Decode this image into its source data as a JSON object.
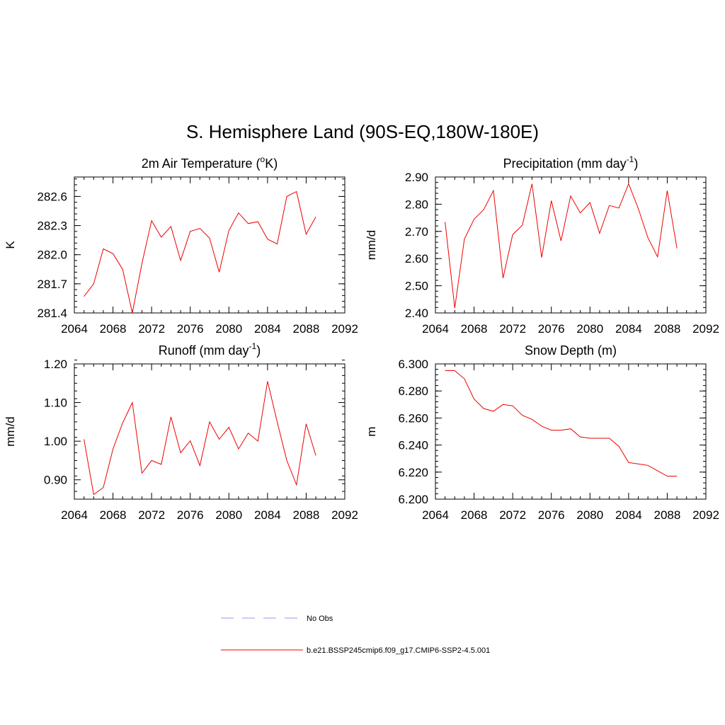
{
  "title": "S. Hemisphere Land (90S-EQ,180W-180E)",
  "colors": {
    "model": "#ee0000",
    "obs": "#9999ee"
  },
  "legend": [
    {
      "label": "No Obs",
      "style": "dashed",
      "color": "#9999ee"
    },
    {
      "label": "b.e21.BSSP245cmip6.f09_g17.CMIP6-SSP2-4.5.001",
      "style": "solid",
      "color": "#ee0000"
    }
  ],
  "chart_data": [
    {
      "type": "line",
      "title_main": "2m Air Temperature (",
      "title_sup": "o",
      "title_after": "K)",
      "ylabel": "K",
      "xlim": [
        2064,
        2092
      ],
      "ylim": [
        281.4,
        282.8
      ],
      "xticks": [
        2064,
        2068,
        2072,
        2076,
        2080,
        2084,
        2088,
        2092
      ],
      "yticks": [
        281.4,
        281.7,
        282.0,
        282.3,
        282.6
      ],
      "ytick_labels": [
        "281.4",
        "281.7",
        "282.0",
        "282.3",
        "282.6"
      ],
      "yminor": 0.06,
      "x": [
        2065,
        2066,
        2067,
        2068,
        2069,
        2070,
        2071,
        2072,
        2073,
        2074,
        2075,
        2076,
        2077,
        2078,
        2079,
        2080,
        2081,
        2082,
        2083,
        2084,
        2085,
        2086,
        2087,
        2088,
        2089
      ],
      "values": [
        281.57,
        281.7,
        282.06,
        282.01,
        281.85,
        281.4,
        281.91,
        282.35,
        282.18,
        282.29,
        281.94,
        282.24,
        282.27,
        282.17,
        281.82,
        282.25,
        282.43,
        282.32,
        282.34,
        282.16,
        282.11,
        282.6,
        282.65,
        282.21,
        282.39
      ]
    },
    {
      "type": "line",
      "title_main": "Precipitation (mm day",
      "title_sup": "-1",
      "title_after": ")",
      "ylabel": "mm/d",
      "xlim": [
        2064,
        2092
      ],
      "ylim": [
        2.4,
        2.9
      ],
      "xticks": [
        2064,
        2068,
        2072,
        2076,
        2080,
        2084,
        2088,
        2092
      ],
      "yticks": [
        2.4,
        2.5,
        2.6,
        2.7,
        2.8,
        2.9
      ],
      "ytick_labels": [
        "2.40",
        "2.50",
        "2.60",
        "2.70",
        "2.80",
        "2.90"
      ],
      "yminor": 0.02,
      "x": [
        2065,
        2066,
        2067,
        2068,
        2069,
        2070,
        2071,
        2072,
        2073,
        2074,
        2075,
        2076,
        2077,
        2078,
        2079,
        2080,
        2081,
        2082,
        2083,
        2084,
        2085,
        2086,
        2087,
        2088,
        2089
      ],
      "values": [
        2.735,
        2.418,
        2.672,
        2.745,
        2.78,
        2.85,
        2.528,
        2.688,
        2.723,
        2.875,
        2.604,
        2.813,
        2.665,
        2.83,
        2.768,
        2.806,
        2.693,
        2.795,
        2.786,
        2.875,
        2.784,
        2.677,
        2.606,
        2.85,
        2.638
      ]
    },
    {
      "type": "line",
      "title_main": "Runoff (mm day",
      "title_sup": "-1",
      "title_after": ")",
      "ylabel": "mm/d",
      "xlim": [
        2064,
        2092
      ],
      "ylim": [
        0.85,
        1.2
      ],
      "xticks": [
        2064,
        2068,
        2072,
        2076,
        2080,
        2084,
        2088,
        2092
      ],
      "yticks": [
        0.9,
        1.0,
        1.1,
        1.2
      ],
      "ytick_labels": [
        "0.90",
        "1.00",
        "1.10",
        "1.20"
      ],
      "yminor": 0.02,
      "x": [
        2065,
        2066,
        2067,
        2068,
        2069,
        2070,
        2071,
        2072,
        2073,
        2074,
        2075,
        2076,
        2077,
        2078,
        2079,
        2080,
        2081,
        2082,
        2083,
        2084,
        2085,
        2086,
        2087,
        2088,
        2089
      ],
      "values": [
        1.005,
        0.862,
        0.88,
        0.98,
        1.047,
        1.1,
        0.917,
        0.95,
        0.94,
        1.063,
        0.97,
        1.001,
        0.937,
        1.05,
        1.005,
        1.036,
        0.98,
        1.021,
        1.0,
        1.155,
        1.05,
        0.95,
        0.887,
        1.045,
        0.963
      ]
    },
    {
      "type": "line",
      "title_main": "Snow Depth (m)",
      "title_sup": "",
      "title_after": "",
      "ylabel": "m",
      "xlim": [
        2064,
        2092
      ],
      "ylim": [
        6.2,
        6.3
      ],
      "xticks": [
        2064,
        2068,
        2072,
        2076,
        2080,
        2084,
        2088,
        2092
      ],
      "yticks": [
        6.2,
        6.22,
        6.24,
        6.26,
        6.28,
        6.3
      ],
      "ytick_labels": [
        "6.200",
        "6.220",
        "6.240",
        "6.260",
        "6.280",
        "6.300"
      ],
      "yminor": 0.004,
      "x": [
        2065,
        2066,
        2067,
        2068,
        2069,
        2070,
        2071,
        2072,
        2073,
        2074,
        2075,
        2076,
        2077,
        2078,
        2079,
        2080,
        2081,
        2082,
        2083,
        2084,
        2085,
        2086,
        2087,
        2088,
        2089
      ],
      "values": [
        6.295,
        6.295,
        6.289,
        6.274,
        6.267,
        6.265,
        6.27,
        6.269,
        6.262,
        6.259,
        6.254,
        6.251,
        6.251,
        6.252,
        6.246,
        6.245,
        6.245,
        6.245,
        6.239,
        6.227,
        6.226,
        6.225,
        6.221,
        6.217,
        6.217
      ]
    }
  ]
}
